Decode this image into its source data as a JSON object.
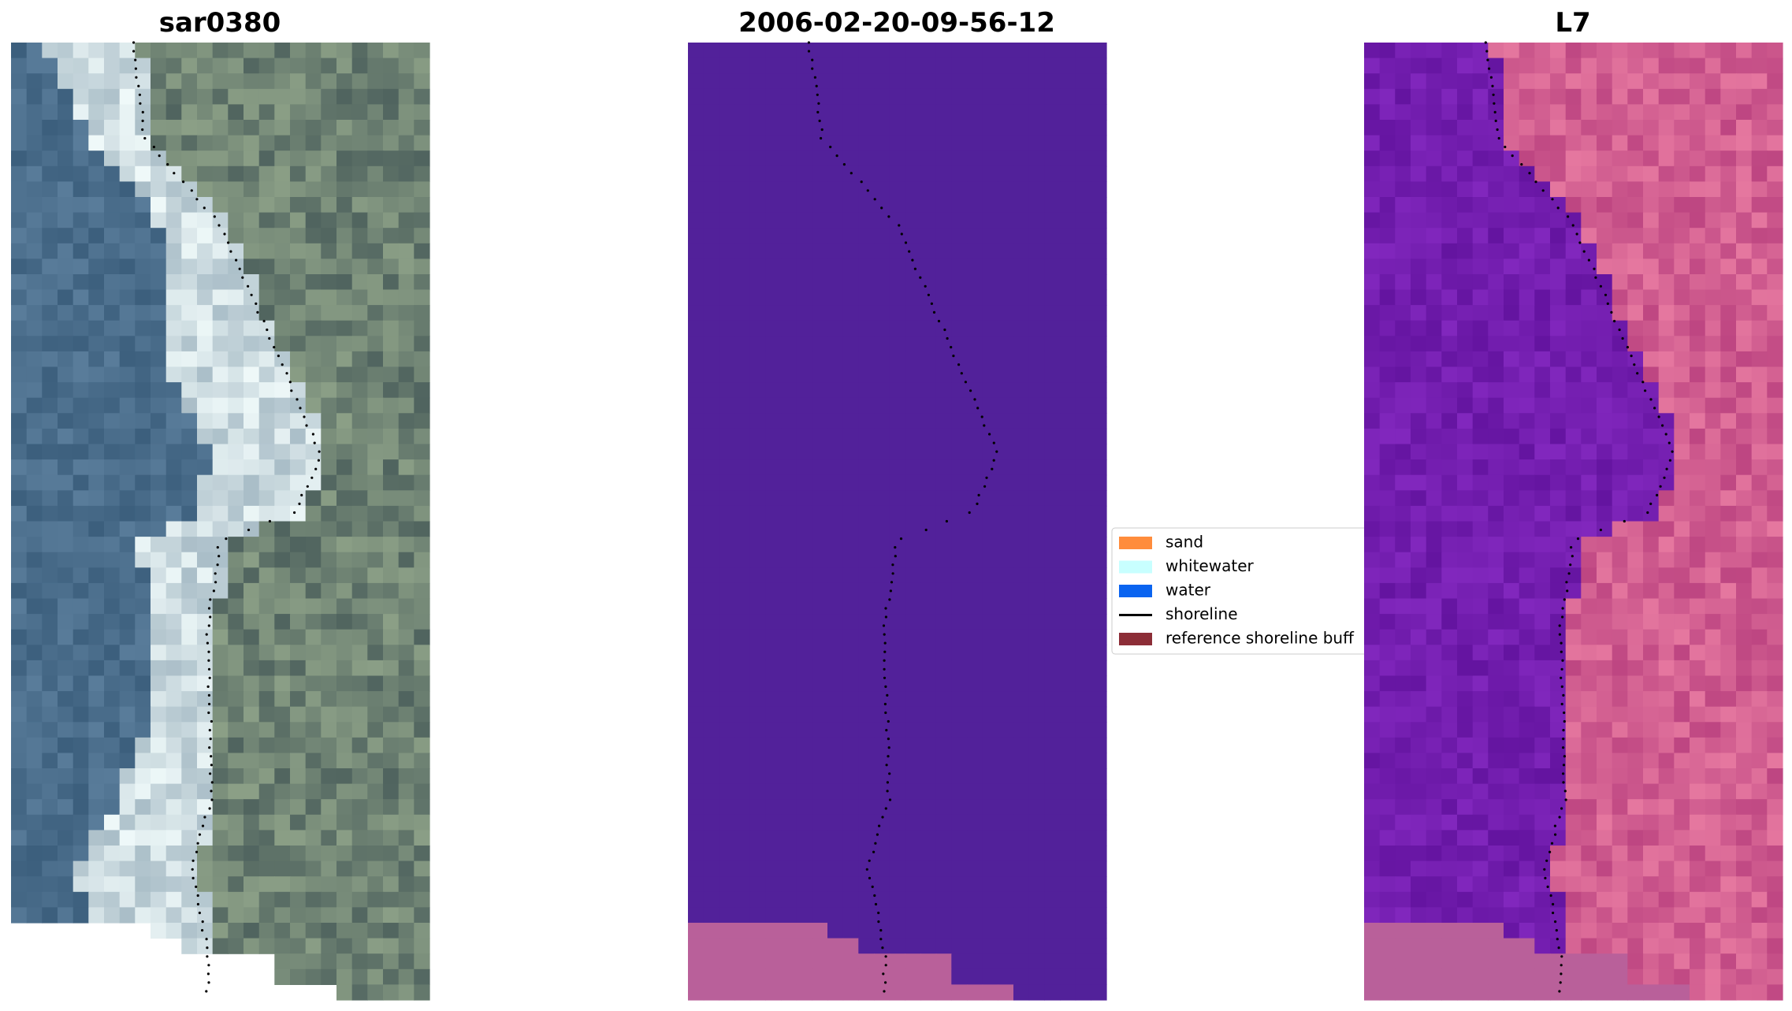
{
  "panels": [
    {
      "title": "sar0380"
    },
    {
      "title": "2006-02-20-09-56-12"
    },
    {
      "title": "L7"
    }
  ],
  "legend": [
    {
      "label": "sand",
      "color": "#ff8c3c"
    },
    {
      "label": "whitewater",
      "color": "#c8ffff"
    },
    {
      "label": "water",
      "color": "#0a64f0"
    },
    {
      "label": "shoreline",
      "color": "#000000"
    },
    {
      "label": "reference shoreline buff",
      "color": "#8c2d37"
    }
  ]
}
